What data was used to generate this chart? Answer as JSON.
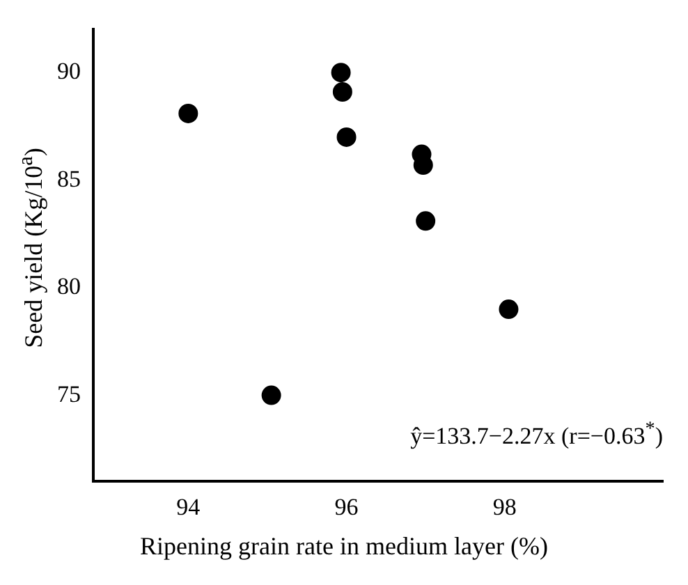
{
  "chart_data": {
    "type": "scatter",
    "xlabel": "Ripening grain rate in medium layer (%)",
    "ylabel": "Seed yield (Kg/10$^{a}$)",
    "x": [
      94.0,
      95.05,
      95.93,
      95.95,
      96.0,
      96.95,
      96.97,
      97.0,
      98.05
    ],
    "series": [
      {
        "color": "#000000",
        "values": [
          88.1,
          75.0,
          90.0,
          89.1,
          87.0,
          86.2,
          85.7,
          83.1,
          79.0
        ]
      }
    ],
    "xlim": [
      92.8,
      100
    ],
    "xticks": [
      94,
      96,
      98
    ],
    "ylim": [
      71,
      92
    ],
    "yticks": [
      75,
      80,
      85,
      90
    ],
    "annotations": [
      "ŷ=133.7−2.27x (r=−0.63$^{*}$)"
    ],
    "grid": false,
    "legend": false,
    "marker": "circle"
  }
}
